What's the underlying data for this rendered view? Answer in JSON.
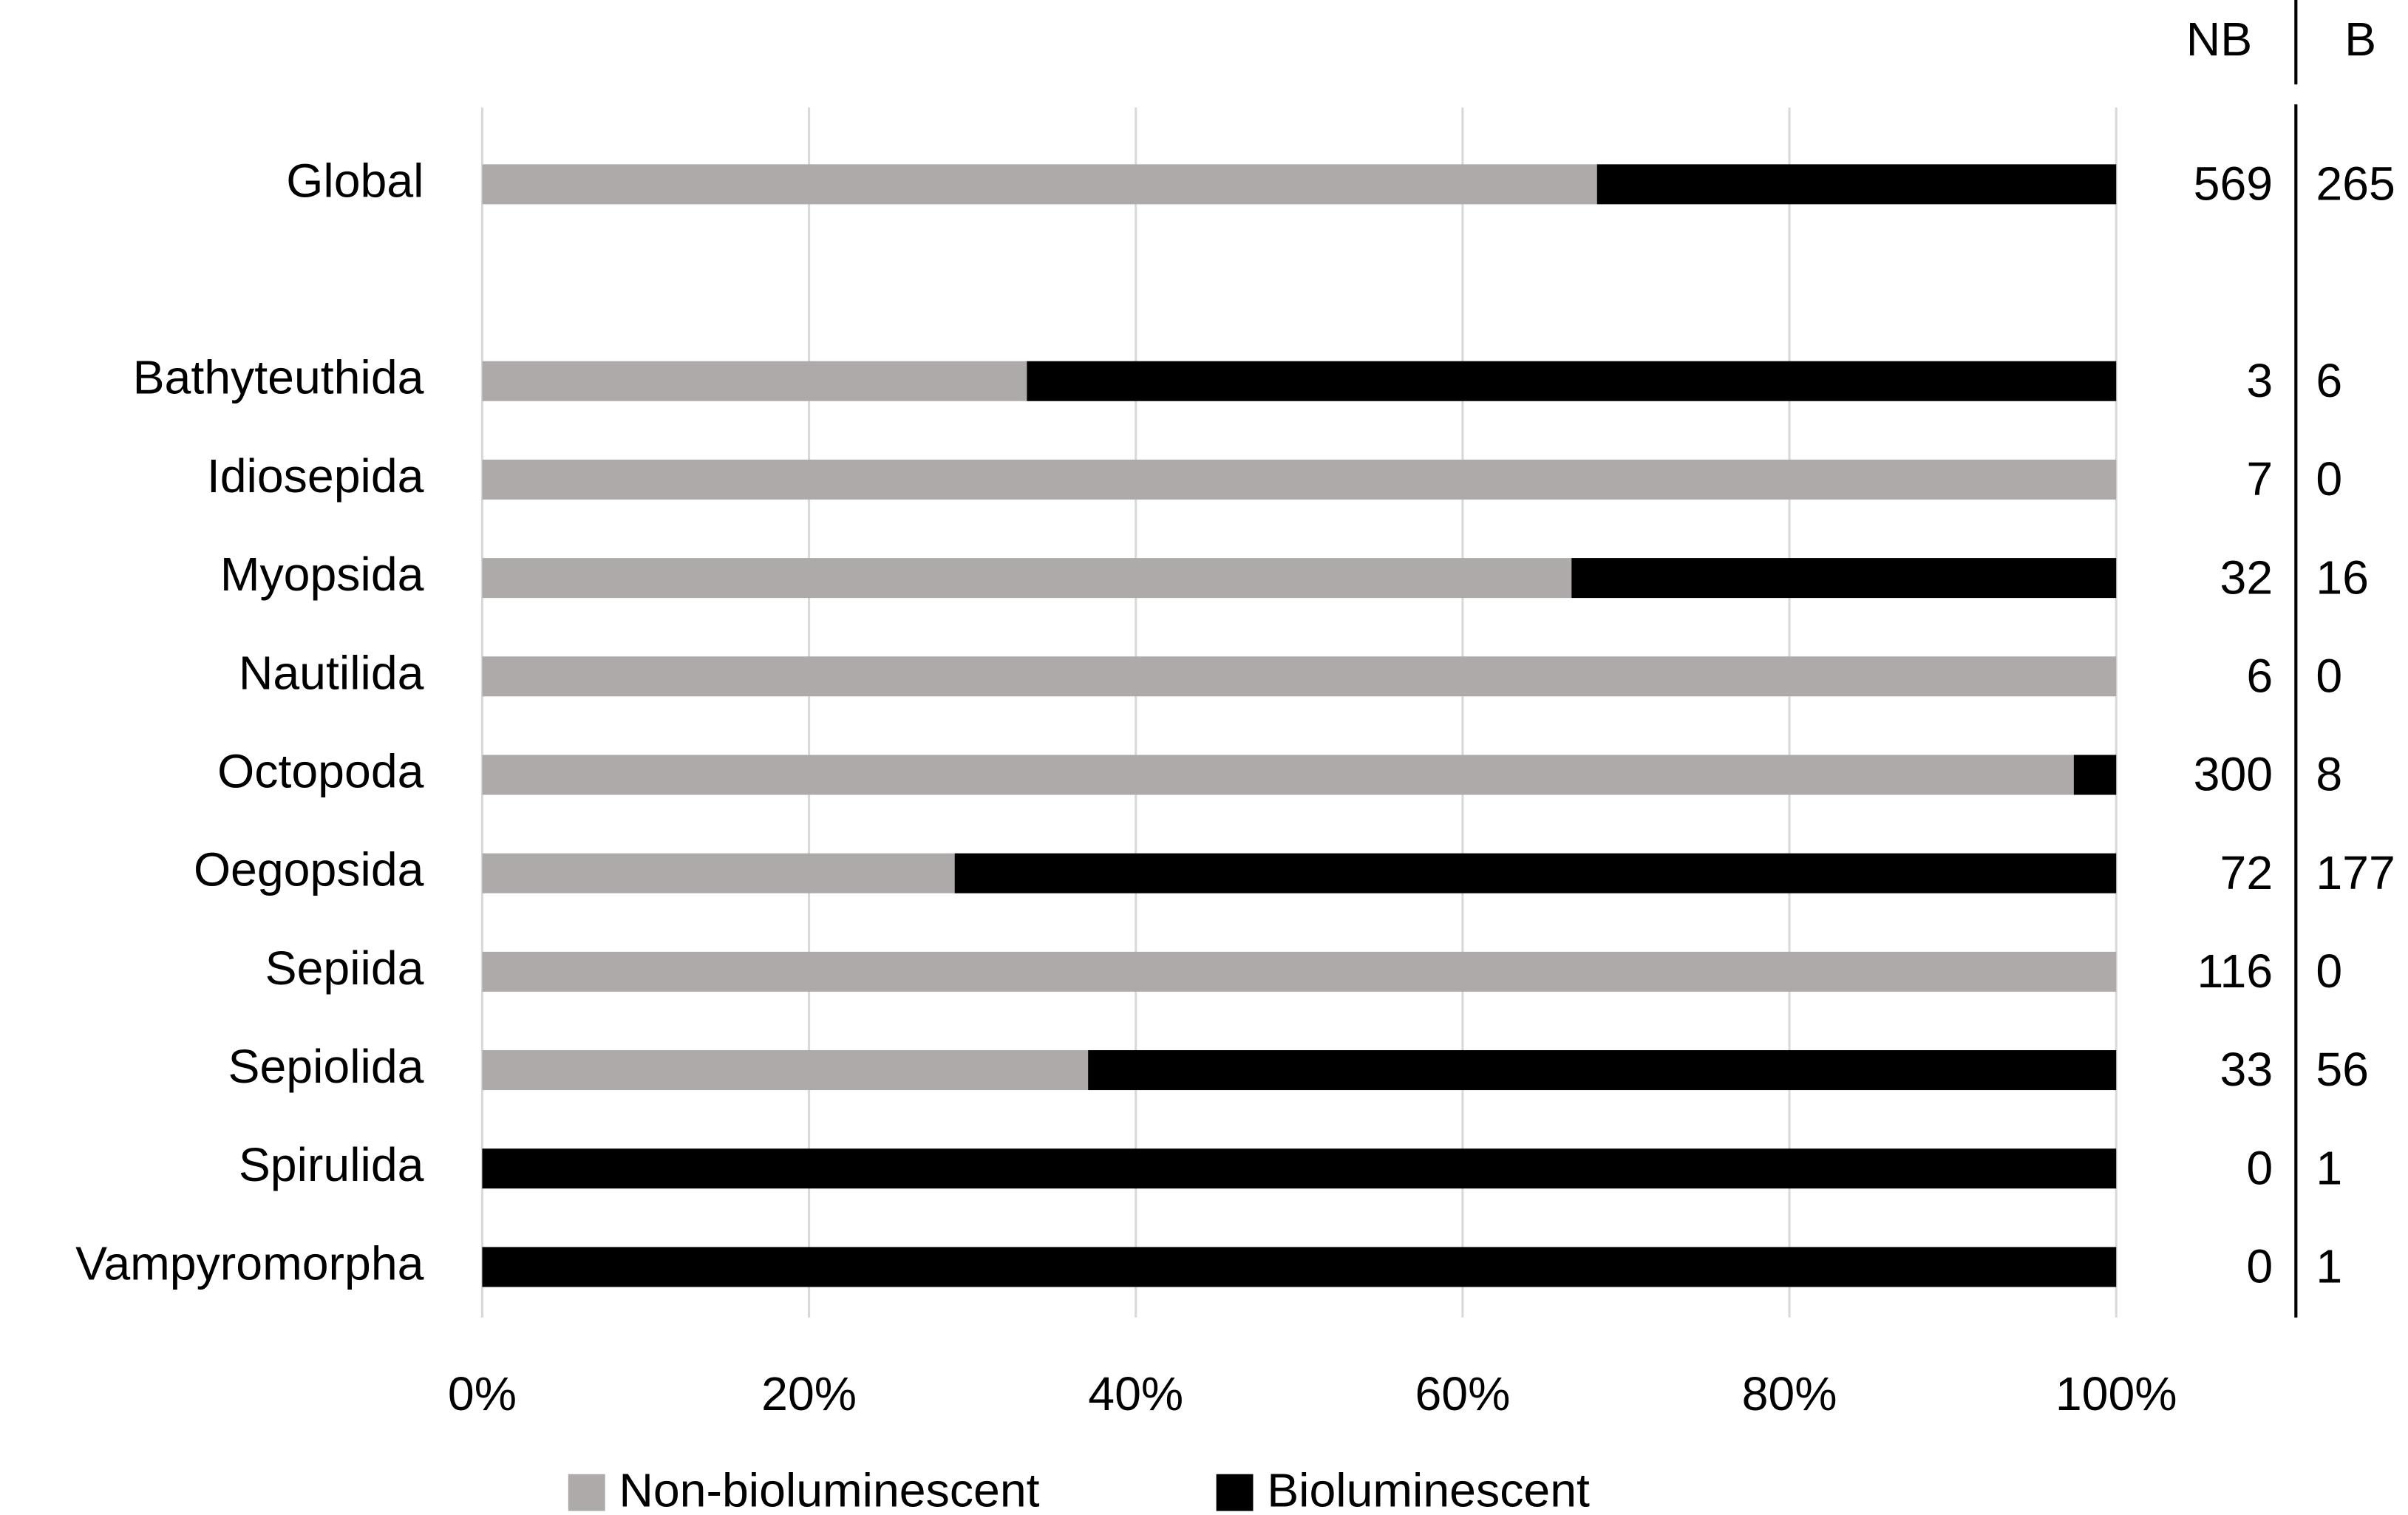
{
  "chart_data": {
    "type": "bar",
    "orientation": "horizontal",
    "stacking": "percent",
    "categories": [
      "Global",
      null,
      "Bathyteuthida",
      "Idiosepida",
      "Myopsida",
      "Nautilida",
      "Octopoda",
      "Oegopsida",
      "Sepiida",
      "Sepiolida",
      "Spirulida",
      "Vampyromorpha"
    ],
    "series": [
      {
        "name": "Non-bioluminescent",
        "short_name": "NB",
        "color": "#aeaaaa",
        "values": [
          569,
          null,
          3,
          7,
          32,
          6,
          300,
          72,
          116,
          33,
          0,
          0
        ]
      },
      {
        "name": "Bioluminescent",
        "short_name": "B",
        "color": "#000000",
        "values": [
          265,
          null,
          6,
          0,
          16,
          0,
          8,
          177,
          0,
          56,
          1,
          1
        ]
      }
    ],
    "xlim": [
      0,
      100
    ],
    "xticks": [
      {
        "value": 0,
        "label": "0%"
      },
      {
        "value": 20,
        "label": "20%"
      },
      {
        "value": 40,
        "label": "40%"
      },
      {
        "value": 60,
        "label": "60%"
      },
      {
        "value": 80,
        "label": "80%"
      },
      {
        "value": 100,
        "label": "100%"
      }
    ],
    "grid": true,
    "legend": "bottom"
  }
}
